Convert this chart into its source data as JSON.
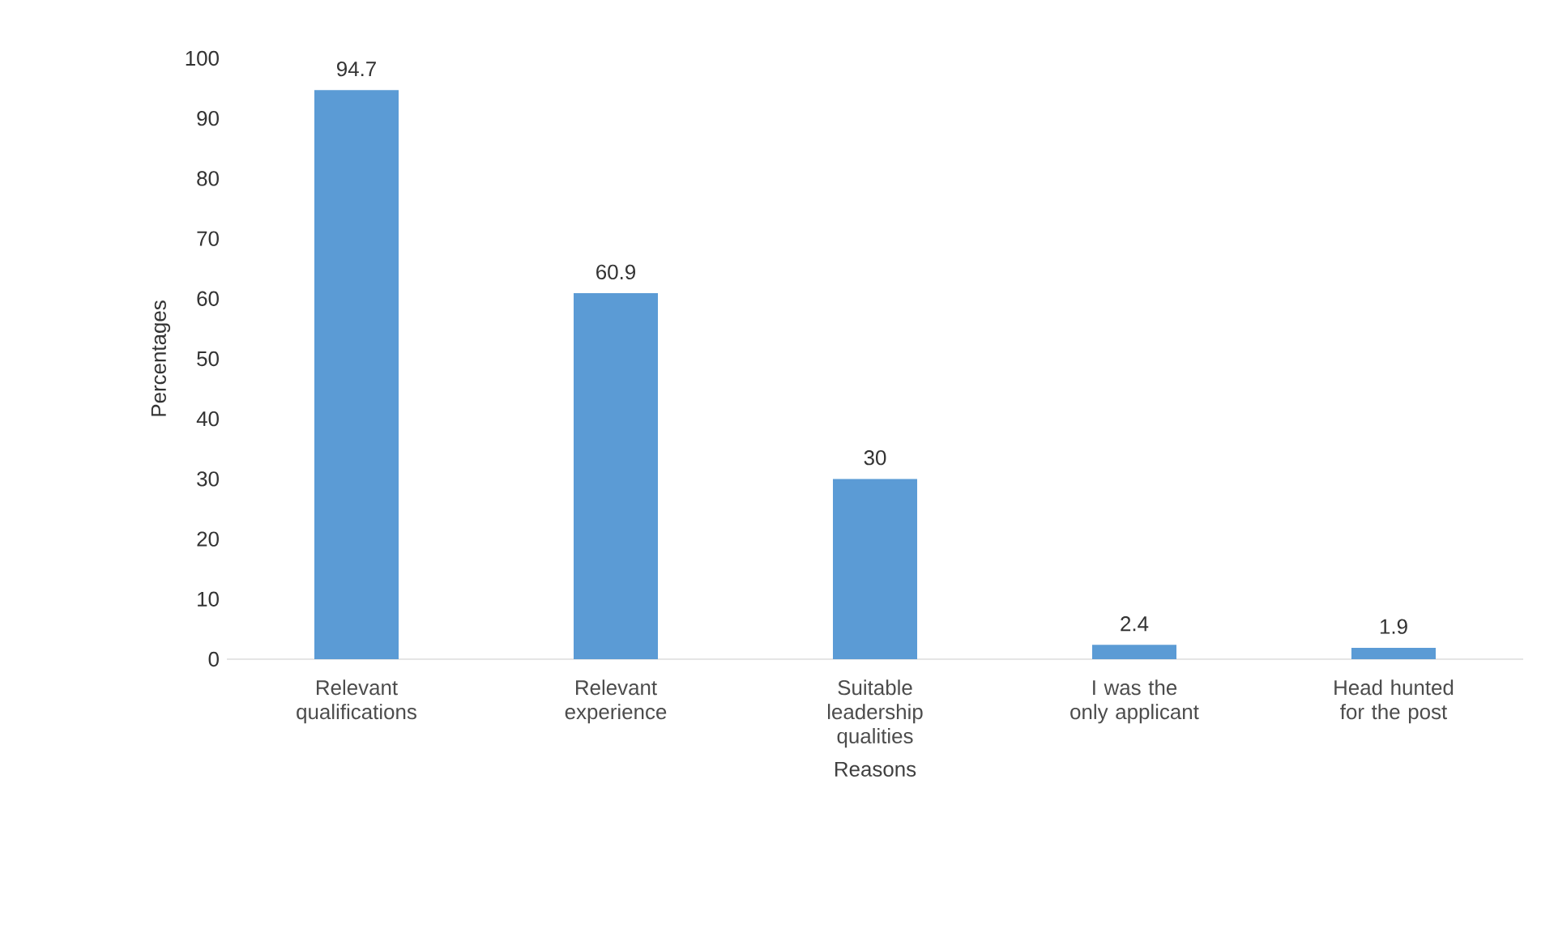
{
  "chart_data": {
    "type": "bar",
    "xlabel": "Reasons",
    "ylabel": "Percentages",
    "categories": [
      "Relevant qualifications",
      "Relevant experience",
      "Suitable leadership qualities",
      "I was the only applicant",
      "Head hunted for the post"
    ],
    "values": [
      94.7,
      60.9,
      30,
      2.4,
      1.9
    ],
    "color": "#5b9bd5",
    "ylim": [
      0,
      100
    ],
    "yticks": [
      0,
      10,
      20,
      30,
      40,
      50,
      60,
      70,
      80,
      90,
      100
    ],
    "data_labels": true
  }
}
